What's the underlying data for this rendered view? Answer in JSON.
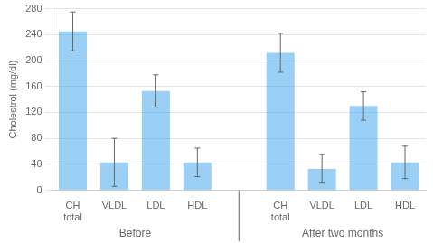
{
  "chart_data": {
    "type": "bar",
    "ylabel": "Cholestrol (mg/dl)",
    "categories": [
      "CH\ntotal",
      "VLDL",
      "LDL",
      "HDL"
    ],
    "series": [
      {
        "name": "Before",
        "values": [
          245,
          43,
          153,
          43
        ],
        "errors": [
          30,
          37,
          25,
          22
        ]
      },
      {
        "name": "After two months",
        "values": [
          212,
          33,
          130,
          43
        ],
        "errors": [
          30,
          22,
          22,
          25
        ]
      }
    ],
    "ylim": [
      0,
      280
    ],
    "yticks": [
      0,
      40,
      80,
      120,
      160,
      200,
      240,
      280
    ],
    "grid": true
  }
}
